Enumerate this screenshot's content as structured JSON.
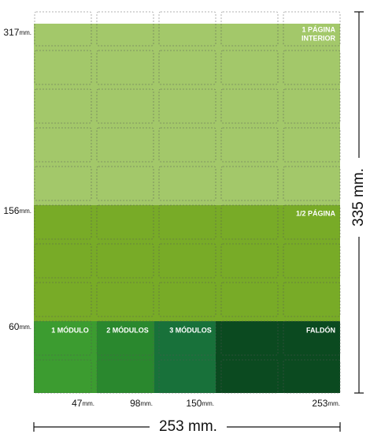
{
  "regions": {
    "full_page": {
      "label_line1": "1 PÁGINA",
      "label_line2": "INTERIOR"
    },
    "half_page": {
      "label": "1/2 PÁGINA"
    },
    "modules": [
      "1 MÓDULO",
      "2 MÓDULOS",
      "3 MÓDULOS",
      "FALDÓN"
    ]
  },
  "heights": [
    {
      "value": "317",
      "unit": "mm."
    },
    {
      "value": "156",
      "unit": "mm."
    },
    {
      "value": "60",
      "unit": "mm."
    }
  ],
  "widths": [
    {
      "value": "47",
      "unit": "mm."
    },
    {
      "value": "98",
      "unit": "mm."
    },
    {
      "value": "150",
      "unit": "mm."
    },
    {
      "value": "253",
      "unit": "mm."
    }
  ],
  "total_width": "253 mm.",
  "total_height": "335 mm."
}
